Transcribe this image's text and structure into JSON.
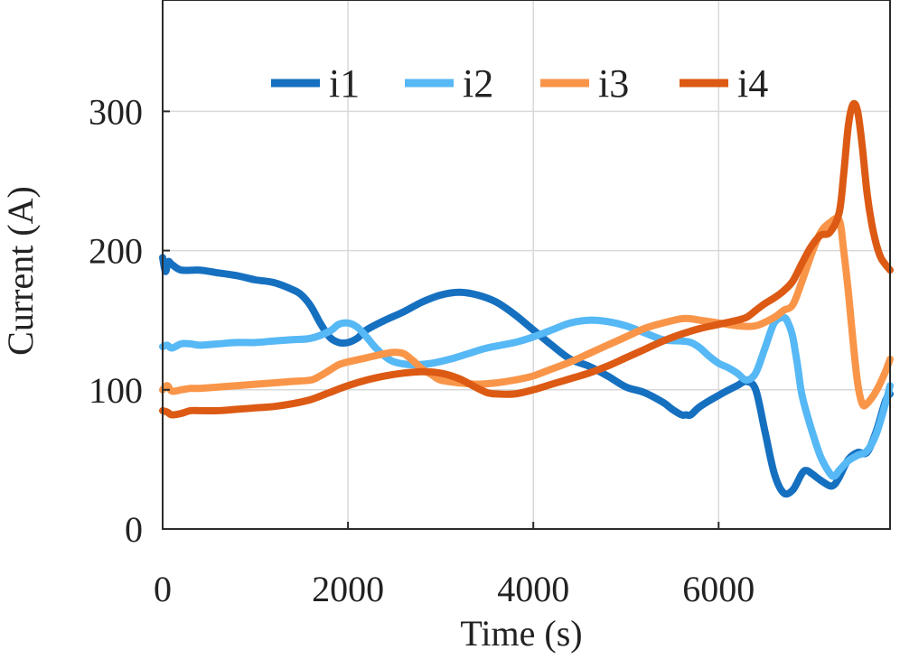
{
  "chart_data": {
    "type": "line",
    "xlabel": "Time (s)",
    "ylabel": "Current (A)",
    "xlim": [
      0,
      7850
    ],
    "ylim": [
      0,
      380
    ],
    "xticks": [
      0,
      2000,
      4000,
      6000
    ],
    "yticks": [
      0,
      100,
      200,
      300
    ],
    "grid": true,
    "legend_position": "top",
    "series": [
      {
        "name": "i1",
        "color": "#1670c0",
        "x": [
          0,
          30,
          60,
          100,
          200,
          400,
          600,
          800,
          1000,
          1200,
          1400,
          1500,
          1600,
          1700,
          1800,
          1900,
          2000,
          2100,
          2200,
          2400,
          2600,
          2800,
          3000,
          3200,
          3400,
          3600,
          3800,
          4000,
          4200,
          4400,
          4600,
          4800,
          5000,
          5200,
          5400,
          5500,
          5600,
          5650,
          5700,
          5800,
          6000,
          6200,
          6300,
          6400,
          6500,
          6600,
          6700,
          6800,
          6900,
          6950,
          7000,
          7100,
          7200,
          7250,
          7300,
          7400,
          7500,
          7600,
          7700,
          7800,
          7850
        ],
        "y": [
          195,
          185,
          192,
          190,
          186,
          186,
          184,
          182,
          179,
          177,
          172,
          168,
          160,
          148,
          138,
          134,
          134,
          137,
          143,
          150,
          156,
          163,
          168,
          170,
          168,
          163,
          154,
          143,
          132,
          122,
          117,
          110,
          102,
          98,
          91,
          86,
          82,
          82,
          82,
          88,
          96,
          103,
          106,
          100,
          70,
          40,
          26,
          28,
          40,
          42,
          40,
          35,
          31,
          32,
          37,
          50,
          55,
          55,
          70,
          92,
          97
        ]
      },
      {
        "name": "i2",
        "color": "#56b8f5",
        "x": [
          0,
          50,
          100,
          200,
          300,
          400,
          600,
          800,
          1000,
          1200,
          1400,
          1600,
          1800,
          1900,
          2000,
          2100,
          2200,
          2300,
          2400,
          2500,
          2700,
          2900,
          3100,
          3300,
          3500,
          3800,
          4000,
          4200,
          4400,
          4600,
          4800,
          5000,
          5200,
          5400,
          5600,
          5700,
          5800,
          5900,
          6000,
          6100,
          6200,
          6300,
          6400,
          6500,
          6600,
          6700,
          6750,
          6800,
          6850,
          6900,
          7000,
          7100,
          7200,
          7250,
          7300,
          7400,
          7500,
          7600,
          7700,
          7800,
          7850
        ],
        "y": [
          131,
          132,
          130,
          133,
          133,
          132,
          133,
          134,
          134,
          135,
          136,
          137,
          142,
          147,
          148,
          145,
          138,
          130,
          124,
          120,
          118,
          119,
          122,
          126,
          130,
          134,
          138,
          143,
          148,
          150,
          149,
          146,
          141,
          136,
          135,
          134,
          130,
          124,
          119,
          116,
          112,
          107,
          112,
          130,
          148,
          152,
          148,
          138,
          118,
          96,
          72,
          52,
          40,
          38,
          42,
          49,
          53,
          56,
          68,
          90,
          103
        ]
      },
      {
        "name": "i3",
        "color": "#f99549",
        "x": [
          0,
          50,
          100,
          200,
          300,
          400,
          600,
          800,
          1000,
          1200,
          1400,
          1600,
          1700,
          1800,
          1900,
          2000,
          2200,
          2400,
          2500,
          2600,
          2700,
          2800,
          2900,
          3000,
          3200,
          3400,
          3600,
          3800,
          4000,
          4200,
          4400,
          4600,
          4800,
          5000,
          5200,
          5400,
          5600,
          5700,
          5800,
          6000,
          6200,
          6400,
          6600,
          6700,
          6800,
          6900,
          7000,
          7100,
          7200,
          7300,
          7350,
          7400,
          7450,
          7500,
          7550,
          7600,
          7700,
          7800,
          7850
        ],
        "y": [
          100,
          103,
          99,
          100,
          101,
          101,
          102,
          103,
          104,
          105,
          106,
          107,
          110,
          114,
          118,
          120,
          123,
          126,
          127,
          126,
          121,
          115,
          111,
          107,
          105,
          104,
          105,
          107,
          110,
          115,
          120,
          126,
          132,
          138,
          144,
          148,
          151,
          151,
          150,
          148,
          146,
          146,
          152,
          157,
          161,
          178,
          197,
          213,
          220,
          222,
          200,
          170,
          135,
          105,
          90,
          90,
          99,
          113,
          122
        ]
      },
      {
        "name": "i4",
        "color": "#dc5a14",
        "x": [
          0,
          50,
          100,
          200,
          300,
          400,
          600,
          800,
          1000,
          1200,
          1400,
          1600,
          1800,
          2000,
          2200,
          2400,
          2600,
          2800,
          3000,
          3200,
          3400,
          3500,
          3600,
          3800,
          4000,
          4200,
          4400,
          4600,
          4800,
          5000,
          5200,
          5400,
          5600,
          5800,
          6000,
          6200,
          6300,
          6400,
          6500,
          6600,
          6700,
          6800,
          6900,
          7000,
          7100,
          7200,
          7300,
          7350,
          7400,
          7450,
          7500,
          7550,
          7600,
          7650,
          7700,
          7750,
          7800,
          7850
        ],
        "y": [
          85,
          84,
          82,
          83,
          85,
          85,
          85,
          86,
          87,
          88,
          90,
          93,
          98,
          103,
          107,
          110,
          112,
          113,
          112,
          108,
          101,
          98,
          97,
          97,
          100,
          104,
          108,
          112,
          117,
          123,
          129,
          135,
          140,
          144,
          147,
          150,
          152,
          157,
          162,
          166,
          171,
          178,
          191,
          203,
          211,
          213,
          227,
          255,
          290,
          305,
          300,
          275,
          242,
          220,
          205,
          195,
          190,
          186
        ]
      }
    ]
  }
}
